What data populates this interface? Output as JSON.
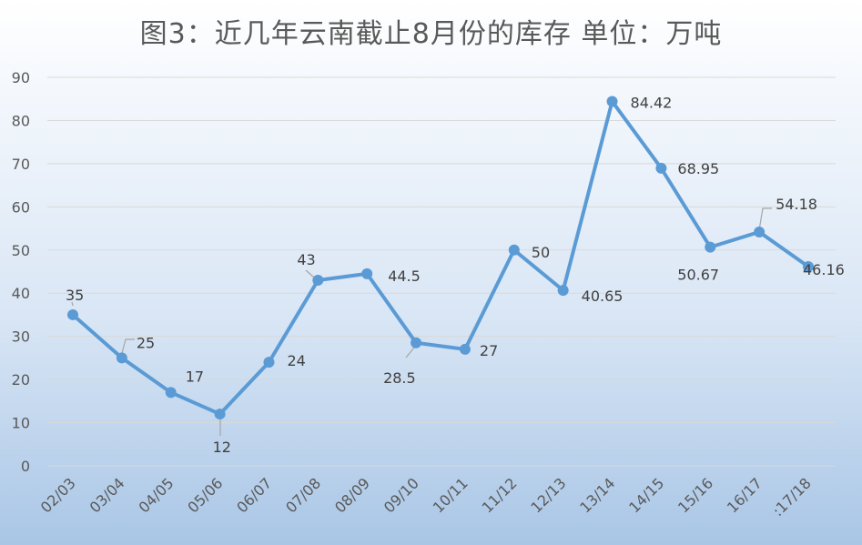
{
  "chart_data": {
    "type": "line",
    "title": "图3：近几年云南截止8月份的库存  单位：万吨",
    "categories": [
      "02/03",
      "03/04",
      "04/05",
      "05/06",
      "06/07",
      "07/08",
      "08/09",
      "09/10",
      "10/11",
      "11/12",
      "12/13",
      "13/14",
      "14/15",
      "15/16",
      "16/17",
      ":17/18"
    ],
    "series": [
      {
        "values": [
          35,
          25,
          17,
          12,
          24,
          43,
          44.5,
          28.5,
          27,
          50,
          40.65,
          84.42,
          68.95,
          50.67,
          54.18,
          46.16
        ],
        "labels": [
          "35",
          "25",
          "17",
          "12",
          "24",
          "43",
          "44.5",
          "28.5",
          "27",
          "50",
          "40.65",
          "84.42",
          "68.95",
          "50.67",
          "54.18",
          "46.16"
        ],
        "color": "#5b9bd5"
      }
    ],
    "yticks": [
      "0",
      "10",
      "20",
      "30",
      "40",
      "50",
      "60",
      "70",
      "80",
      "90"
    ],
    "ylim": [
      0,
      90
    ],
    "xlabel": "",
    "ylabel": "",
    "grid": true,
    "gridline_color": "#d9d9d9",
    "text_color": "#595959",
    "leader_line_color": "#a6a6a6"
  }
}
